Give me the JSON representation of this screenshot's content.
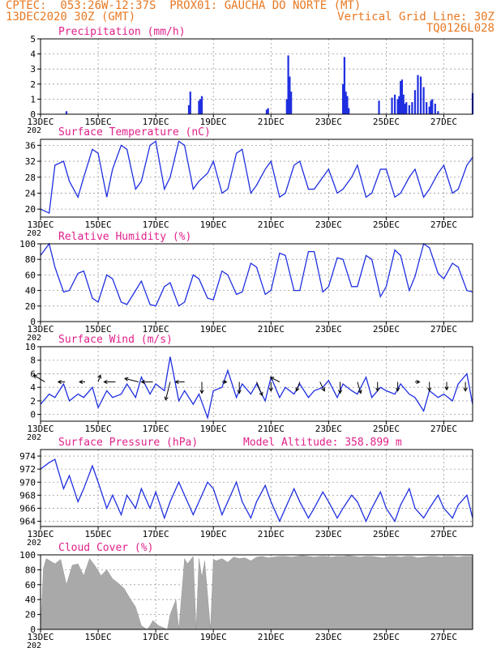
{
  "header": {
    "line1_left": "CPTEC:  053:26W-12:37S  PROX01: GAUCHA DO NORTE (MT)",
    "line2_left": "13DEC2020 30Z (GMT)",
    "line2_right": "Vertical Grid Line: 30Z",
    "line3_right": "TQ0126L028"
  },
  "colors": {
    "header": "#e87822",
    "title": "#e0208a",
    "series": "#1f2fe0",
    "cloud": "#a9a9a9",
    "grid": "#9a9a9a"
  },
  "x_axis": {
    "range_days": [
      0,
      15.0
    ],
    "tick_labels": [
      "13DEC",
      "15DEC",
      "17DEC",
      "19DEC",
      "21DEC",
      "23DEC",
      "25DEC",
      "27DEC"
    ],
    "tick_positions_days": [
      0,
      2,
      4,
      6,
      8,
      10,
      12,
      14
    ],
    "year_stub": "202"
  },
  "chart_data": [
    {
      "type": "bar",
      "title": "Precipitation (mm/h)",
      "ylim": [
        0,
        5
      ],
      "yticks": [
        0,
        1,
        2,
        3,
        4,
        5
      ],
      "x_days": [
        0.9,
        5.15,
        5.2,
        5.5,
        5.55,
        5.6,
        7.85,
        7.9,
        8.55,
        8.6,
        8.65,
        8.7,
        10.5,
        10.55,
        10.6,
        10.65,
        10.7,
        11.75,
        12.2,
        12.3,
        12.4,
        12.45,
        12.5,
        12.55,
        12.6,
        12.65,
        12.7,
        12.8,
        12.9,
        13.0,
        13.1,
        13.2,
        13.3,
        13.4,
        13.5,
        13.55,
        13.6,
        13.7,
        13.8,
        15.0
      ],
      "values": [
        0.2,
        0.6,
        1.5,
        0.9,
        1.0,
        1.2,
        0.3,
        0.4,
        1.0,
        3.9,
        2.5,
        1.5,
        2.0,
        3.8,
        1.5,
        1.2,
        0.4,
        0.9,
        1.1,
        1.3,
        1.0,
        1.2,
        2.2,
        2.3,
        1.3,
        0.7,
        0.8,
        0.6,
        0.8,
        1.6,
        2.6,
        2.5,
        1.8,
        0.8,
        0.5,
        0.9,
        1.0,
        0.7,
        0.2,
        1.4
      ]
    },
    {
      "type": "line",
      "title": "Surface Temperature (nC)",
      "ylim": [
        18,
        37.5
      ],
      "yticks": [
        20,
        24,
        28,
        32,
        36
      ],
      "x_days": [
        0,
        0.3,
        0.5,
        0.8,
        1.0,
        1.3,
        1.5,
        1.8,
        2.0,
        2.3,
        2.5,
        2.8,
        3.0,
        3.3,
        3.5,
        3.8,
        4.0,
        4.3,
        4.5,
        4.8,
        5.0,
        5.3,
        5.5,
        5.8,
        6.0,
        6.3,
        6.5,
        6.8,
        7.0,
        7.3,
        7.5,
        7.8,
        8.0,
        8.3,
        8.5,
        8.8,
        9.0,
        9.3,
        9.5,
        9.8,
        10.0,
        10.3,
        10.5,
        10.8,
        11.0,
        11.3,
        11.5,
        11.8,
        12.0,
        12.3,
        12.5,
        12.8,
        13.0,
        13.3,
        13.5,
        13.8,
        14.0,
        14.3,
        14.5,
        14.8,
        15.0
      ],
      "values": [
        20,
        19,
        31,
        32,
        27,
        23,
        28,
        35,
        34,
        23,
        30,
        36,
        35,
        25,
        27,
        36,
        37,
        25,
        28,
        37,
        36,
        25,
        27,
        29,
        32,
        24,
        25,
        34,
        35,
        24,
        26,
        30,
        32,
        23,
        24,
        31,
        32,
        25,
        25,
        28,
        30,
        24,
        25,
        28,
        31,
        23,
        24,
        30,
        30,
        23,
        24,
        28,
        30,
        23,
        25,
        29,
        31,
        24,
        25,
        31,
        33
      ]
    },
    {
      "type": "line",
      "title": "Relative Humidity (%)",
      "ylim": [
        0,
        100
      ],
      "yticks": [
        0,
        20,
        40,
        60,
        80,
        100
      ],
      "x_days": [
        0,
        0.3,
        0.5,
        0.8,
        1.0,
        1.3,
        1.5,
        1.8,
        2.0,
        2.3,
        2.5,
        2.8,
        3.0,
        3.3,
        3.5,
        3.8,
        4.0,
        4.3,
        4.5,
        4.8,
        5.0,
        5.3,
        5.5,
        5.8,
        6.0,
        6.3,
        6.5,
        6.8,
        7.0,
        7.3,
        7.5,
        7.8,
        8.0,
        8.3,
        8.5,
        8.8,
        9.0,
        9.3,
        9.5,
        9.8,
        10.0,
        10.3,
        10.5,
        10.8,
        11.0,
        11.3,
        11.5,
        11.8,
        12.0,
        12.3,
        12.5,
        12.8,
        13.0,
        13.3,
        13.5,
        13.8,
        14.0,
        14.3,
        14.5,
        14.8,
        15.0
      ],
      "values": [
        85,
        100,
        70,
        38,
        40,
        62,
        65,
        30,
        25,
        60,
        55,
        25,
        22,
        40,
        52,
        22,
        20,
        45,
        50,
        20,
        25,
        60,
        55,
        30,
        28,
        65,
        60,
        35,
        38,
        75,
        70,
        35,
        40,
        88,
        85,
        40,
        40,
        90,
        90,
        38,
        45,
        82,
        80,
        45,
        45,
        85,
        80,
        32,
        45,
        92,
        85,
        40,
        58,
        100,
        95,
        62,
        55,
        75,
        70,
        40,
        38
      ]
    },
    {
      "type": "line",
      "title": "Surface Wind (m/s)",
      "ylim": [
        -1,
        10
      ],
      "yticks": [
        0,
        2,
        4,
        6,
        8,
        10
      ],
      "x_days": [
        0,
        0.3,
        0.5,
        0.8,
        1.0,
        1.3,
        1.5,
        1.8,
        2.0,
        2.3,
        2.5,
        2.8,
        3.0,
        3.3,
        3.5,
        3.8,
        4.0,
        4.3,
        4.5,
        4.8,
        5.0,
        5.3,
        5.5,
        5.8,
        6.0,
        6.3,
        6.5,
        6.8,
        7.0,
        7.3,
        7.5,
        7.8,
        8.0,
        8.3,
        8.5,
        8.8,
        9.0,
        9.3,
        9.5,
        9.8,
        10.0,
        10.3,
        10.5,
        10.8,
        11.0,
        11.3,
        11.5,
        11.8,
        12.0,
        12.3,
        12.5,
        12.8,
        13.0,
        13.3,
        13.5,
        13.8,
        14.0,
        14.3,
        14.5,
        14.8,
        15.0
      ],
      "values": [
        1.5,
        3.0,
        2.5,
        4.5,
        2.0,
        3.0,
        2.5,
        4.0,
        1.0,
        3.5,
        2.5,
        3.0,
        4.5,
        2.5,
        5.5,
        3.0,
        4.5,
        3.5,
        8.5,
        2.0,
        3.5,
        1.5,
        3.0,
        -0.5,
        3.5,
        4.0,
        6.5,
        2.5,
        4.5,
        3.0,
        4.5,
        2.0,
        5.5,
        2.5,
        4.0,
        3.0,
        4.5,
        2.5,
        3.5,
        4.0,
        5.0,
        2.5,
        4.5,
        3.5,
        3.0,
        5.5,
        2.5,
        4.0,
        3.5,
        3.0,
        4.5,
        3.0,
        2.5,
        0.5,
        3.5,
        2.5,
        3.0,
        2.0,
        4.5,
        6.0,
        1.5
      ],
      "arrows": [
        {
          "x_day": 0.15,
          "u": -1.0,
          "v": 0.6
        },
        {
          "x_day": 0.85,
          "u": -0.6,
          "v": 0.0
        },
        {
          "x_day": 1.55,
          "u": -0.5,
          "v": 0.0
        },
        {
          "x_day": 2.0,
          "u": 0.2,
          "v": 0.6
        },
        {
          "x_day": 2.6,
          "u": -1.0,
          "v": 0.0
        },
        {
          "x_day": 3.4,
          "u": -1.2,
          "v": 0.3
        },
        {
          "x_day": 3.9,
          "u": -1.0,
          "v": 0.0
        },
        {
          "x_day": 4.5,
          "u": -0.4,
          "v": -1.6
        },
        {
          "x_day": 5.0,
          "u": -0.8,
          "v": 0.0
        },
        {
          "x_day": 5.6,
          "u": 0.0,
          "v": -1.0
        },
        {
          "x_day": 6.3,
          "u": 0.4,
          "v": 0.0
        },
        {
          "x_day": 6.9,
          "u": 0.0,
          "v": -1.0
        },
        {
          "x_day": 7.5,
          "u": 0.5,
          "v": -1.2
        },
        {
          "x_day": 8.0,
          "u": 0.0,
          "v": -0.8
        },
        {
          "x_day": 8.3,
          "u": -0.8,
          "v": 0.4
        },
        {
          "x_day": 9.0,
          "u": -0.3,
          "v": -0.8
        },
        {
          "x_day": 9.7,
          "u": 0.4,
          "v": -0.8
        },
        {
          "x_day": 10.4,
          "u": 0.0,
          "v": -1.0
        },
        {
          "x_day": 11.0,
          "u": 0.3,
          "v": -1.0
        },
        {
          "x_day": 11.7,
          "u": 0.0,
          "v": -0.8
        },
        {
          "x_day": 12.4,
          "u": 0.0,
          "v": -0.8
        },
        {
          "x_day": 13.0,
          "u": 0.4,
          "v": 0.0
        },
        {
          "x_day": 13.5,
          "u": 0.0,
          "v": -0.8
        },
        {
          "x_day": 14.1,
          "u": 0.0,
          "v": -0.7
        },
        {
          "x_day": 14.75,
          "u": 0.0,
          "v": -0.8
        }
      ]
    },
    {
      "type": "line",
      "title": "Surface Pressure (hPa)",
      "annotation": "Model Altitude: 358.899 m",
      "ylim": [
        963.2,
        975
      ],
      "yticks": [
        964,
        966,
        968,
        970,
        972,
        974
      ],
      "x_days": [
        0,
        0.3,
        0.5,
        0.8,
        1.0,
        1.3,
        1.5,
        1.8,
        2.0,
        2.3,
        2.5,
        2.8,
        3.0,
        3.3,
        3.5,
        3.8,
        4.0,
        4.3,
        4.5,
        4.8,
        5.0,
        5.3,
        5.5,
        5.8,
        6.0,
        6.3,
        6.5,
        6.8,
        7.0,
        7.3,
        7.5,
        7.8,
        8.0,
        8.3,
        8.5,
        8.8,
        9.0,
        9.3,
        9.5,
        9.8,
        10.0,
        10.3,
        10.5,
        10.8,
        11.0,
        11.3,
        11.5,
        11.8,
        12.0,
        12.3,
        12.5,
        12.8,
        13.0,
        13.3,
        13.5,
        13.8,
        14.0,
        14.3,
        14.5,
        14.8,
        15.0
      ],
      "values": [
        972,
        973,
        973.5,
        969,
        971,
        967,
        969,
        972.5,
        970,
        966,
        968,
        965,
        968,
        966,
        969,
        966,
        968.5,
        964.5,
        967,
        970,
        968,
        965,
        967,
        970,
        969,
        965,
        967,
        970,
        967,
        964.5,
        967,
        969.5,
        967,
        964,
        966,
        969,
        967,
        964.5,
        966,
        968.5,
        967,
        964.5,
        966,
        968,
        967,
        964,
        966,
        968.5,
        966,
        964,
        966.5,
        969,
        966,
        964.5,
        966,
        968,
        966,
        964.5,
        966.5,
        968,
        964.5
      ]
    },
    {
      "type": "area",
      "title": "Cloud Cover (%)",
      "ylim": [
        0,
        100
      ],
      "yticks": [
        0,
        20,
        40,
        60,
        80,
        100
      ],
      "x_days": [
        0,
        0.1,
        0.2,
        0.5,
        0.7,
        0.9,
        1.1,
        1.3,
        1.5,
        1.7,
        1.9,
        2.1,
        2.3,
        2.5,
        2.7,
        2.9,
        3.1,
        3.3,
        3.5,
        3.7,
        3.8,
        3.9,
        4.1,
        4.4,
        4.5,
        4.7,
        4.8,
        5.0,
        5.1,
        5.3,
        5.4,
        5.5,
        5.6,
        5.7,
        5.9,
        6.0,
        6.1,
        6.3,
        6.5,
        6.7,
        6.9,
        7.1,
        7.3,
        7.5,
        7.7,
        7.9,
        8.1,
        8.3,
        8.5,
        8.7,
        8.9,
        9.1,
        9.3,
        9.5,
        9.7,
        9.9,
        10.1,
        10.3,
        10.5,
        10.7,
        10.9,
        11.1,
        11.3,
        11.5,
        11.7,
        11.9,
        12.1,
        12.3,
        12.5,
        12.7,
        12.9,
        13.1,
        13.3,
        13.5,
        13.7,
        13.9,
        14.1,
        14.3,
        14.5,
        14.7,
        15.0
      ],
      "values": [
        0,
        82,
        95,
        88,
        94,
        60,
        86,
        88,
        72,
        95,
        85,
        72,
        80,
        68,
        62,
        55,
        42,
        30,
        5,
        0,
        5,
        12,
        5,
        0,
        20,
        40,
        0,
        95,
        88,
        98,
        0,
        95,
        70,
        92,
        0,
        94,
        92,
        95,
        90,
        97,
        95,
        96,
        92,
        97,
        98,
        96,
        97,
        98,
        98,
        97,
        98,
        99,
        98,
        97,
        98,
        98,
        97,
        98,
        98,
        99,
        98,
        97,
        98,
        98,
        97,
        96,
        98,
        98,
        97,
        98,
        98,
        96,
        97,
        98,
        98,
        97,
        98,
        98,
        97,
        98,
        98
      ]
    }
  ]
}
